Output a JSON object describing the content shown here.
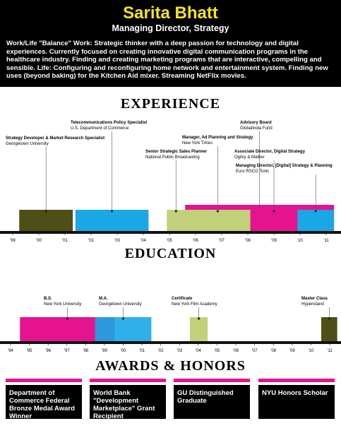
{
  "header": {
    "name": "Sarita Bhatt",
    "title": "Managing Director, Strategy",
    "bio": "Work/Life \"Balance\" Work: Strategic thinker with a deep passion for technology and digital experiences. Currently focused on creating innovative digital communication programs in the healthcare industry. Finding and creating marketing programs that are interactive, compelling and sensible. Life: Configuring and reconfiguring home network and entertainment system. Finding new uses (beyond baking) for the Kitchen Aid mixer. Streaming NetFlix movies."
  },
  "experience": {
    "heading": "EXPERIENCE",
    "ticks": [
      {
        "value": 1999,
        "label": "'99"
      },
      {
        "value": 2000,
        "label": "'00"
      },
      {
        "value": 2001,
        "label": "'01"
      },
      {
        "value": 2002,
        "label": "'02"
      },
      {
        "value": 2003,
        "label": "'03"
      },
      {
        "value": 2004,
        "label": "'04"
      },
      {
        "value": 2005,
        "label": "'05"
      },
      {
        "value": 2006,
        "label": "'06"
      },
      {
        "value": 2007,
        "label": "'07"
      },
      {
        "value": 2008,
        "label": "'08"
      },
      {
        "value": 2009,
        "label": "'09"
      },
      {
        "value": 2010,
        "label": "'10"
      },
      {
        "value": 2011,
        "label": "'11"
      }
    ],
    "items": [
      {
        "title": "Strategy Developer & Market Research Specialist",
        "org": "Georgetown University",
        "start": 1999.25,
        "end": 2001.3,
        "color": "#4e4e17"
      },
      {
        "title": "Telecommunications Policy Specialist",
        "org": "U.S. Department of Commerce",
        "start": 2001.4,
        "end": 2004.2,
        "color": "#1aa7e6"
      },
      {
        "title": "Senior Strategic Sales Planner",
        "org": "National Public Broadcasting",
        "start": 2004.9,
        "end": 2005.6,
        "color": "#c1d17a"
      },
      {
        "title": "Manager, Ad Planning and Strategy",
        "org": "New York Times",
        "start": 2005.6,
        "end": 2008.1,
        "color": "#c1d17a"
      },
      {
        "title": "Advisory Board",
        "org": "GlobalIndia Fund",
        "start": 2005.6,
        "end": 2011.3,
        "color": "#e5138f"
      },
      {
        "title": "Associate Director, Digital Strategy",
        "org": "Ogilvy & Mather",
        "start": 2008.1,
        "end": 2009.9,
        "color": "#e5138f"
      },
      {
        "title": "Managing Director, [Digital] Strategy & Planning",
        "org": "Euro RSCG Tonic",
        "start": 2009.9,
        "end": 2011.3,
        "color": "#1aa7e6"
      }
    ]
  },
  "education": {
    "heading": "EDUCATION",
    "ticks": [
      {
        "value": 1994,
        "label": "'94"
      },
      {
        "value": 1995,
        "label": "'95"
      },
      {
        "value": 1996,
        "label": "'96"
      },
      {
        "value": 1997,
        "label": "'97"
      },
      {
        "value": 1998,
        "label": "'98"
      },
      {
        "value": 1999,
        "label": "'99"
      },
      {
        "value": 2000,
        "label": "'00"
      },
      {
        "value": 2001,
        "label": "'01"
      },
      {
        "value": 2002,
        "label": "'02"
      },
      {
        "value": 2003,
        "label": "'03"
      },
      {
        "value": 2004,
        "label": "'04"
      },
      {
        "value": 2005,
        "label": "'05"
      },
      {
        "value": 2006,
        "label": "'06"
      },
      {
        "value": 2007,
        "label": "'07"
      },
      {
        "value": 2008,
        "label": "'08"
      },
      {
        "value": 2009,
        "label": "'09"
      },
      {
        "value": 2010,
        "label": "'10"
      },
      {
        "value": 2011,
        "label": "'11"
      }
    ],
    "items": [
      {
        "title": "B.S.",
        "org": "New York University",
        "start": 1994.5,
        "end": 1999.55,
        "color": "#e5138f"
      },
      {
        "title": "M.A.",
        "org": "Georgetown University",
        "start": 1998.5,
        "end": 2001.5,
        "color": "#1aa7e6"
      },
      {
        "title": "Certificate",
        "org": "New York Film Academy",
        "start": 2003.55,
        "end": 2004.5,
        "color": "#c1d17a"
      },
      {
        "title": "Master Class",
        "org": "Hyperisland",
        "start": 2010.55,
        "end": 2011.4,
        "color": "#4e4e17"
      }
    ]
  },
  "awards": {
    "heading": "AWARDS & HONORS",
    "items": [
      "Department of Commerce Federal Bronze Medal Award Winner",
      "World Bank \"Development Marketplace\" Grant Recipient",
      "GU Distinguished Graduate",
      "NYU Honors Scholar"
    ]
  }
}
